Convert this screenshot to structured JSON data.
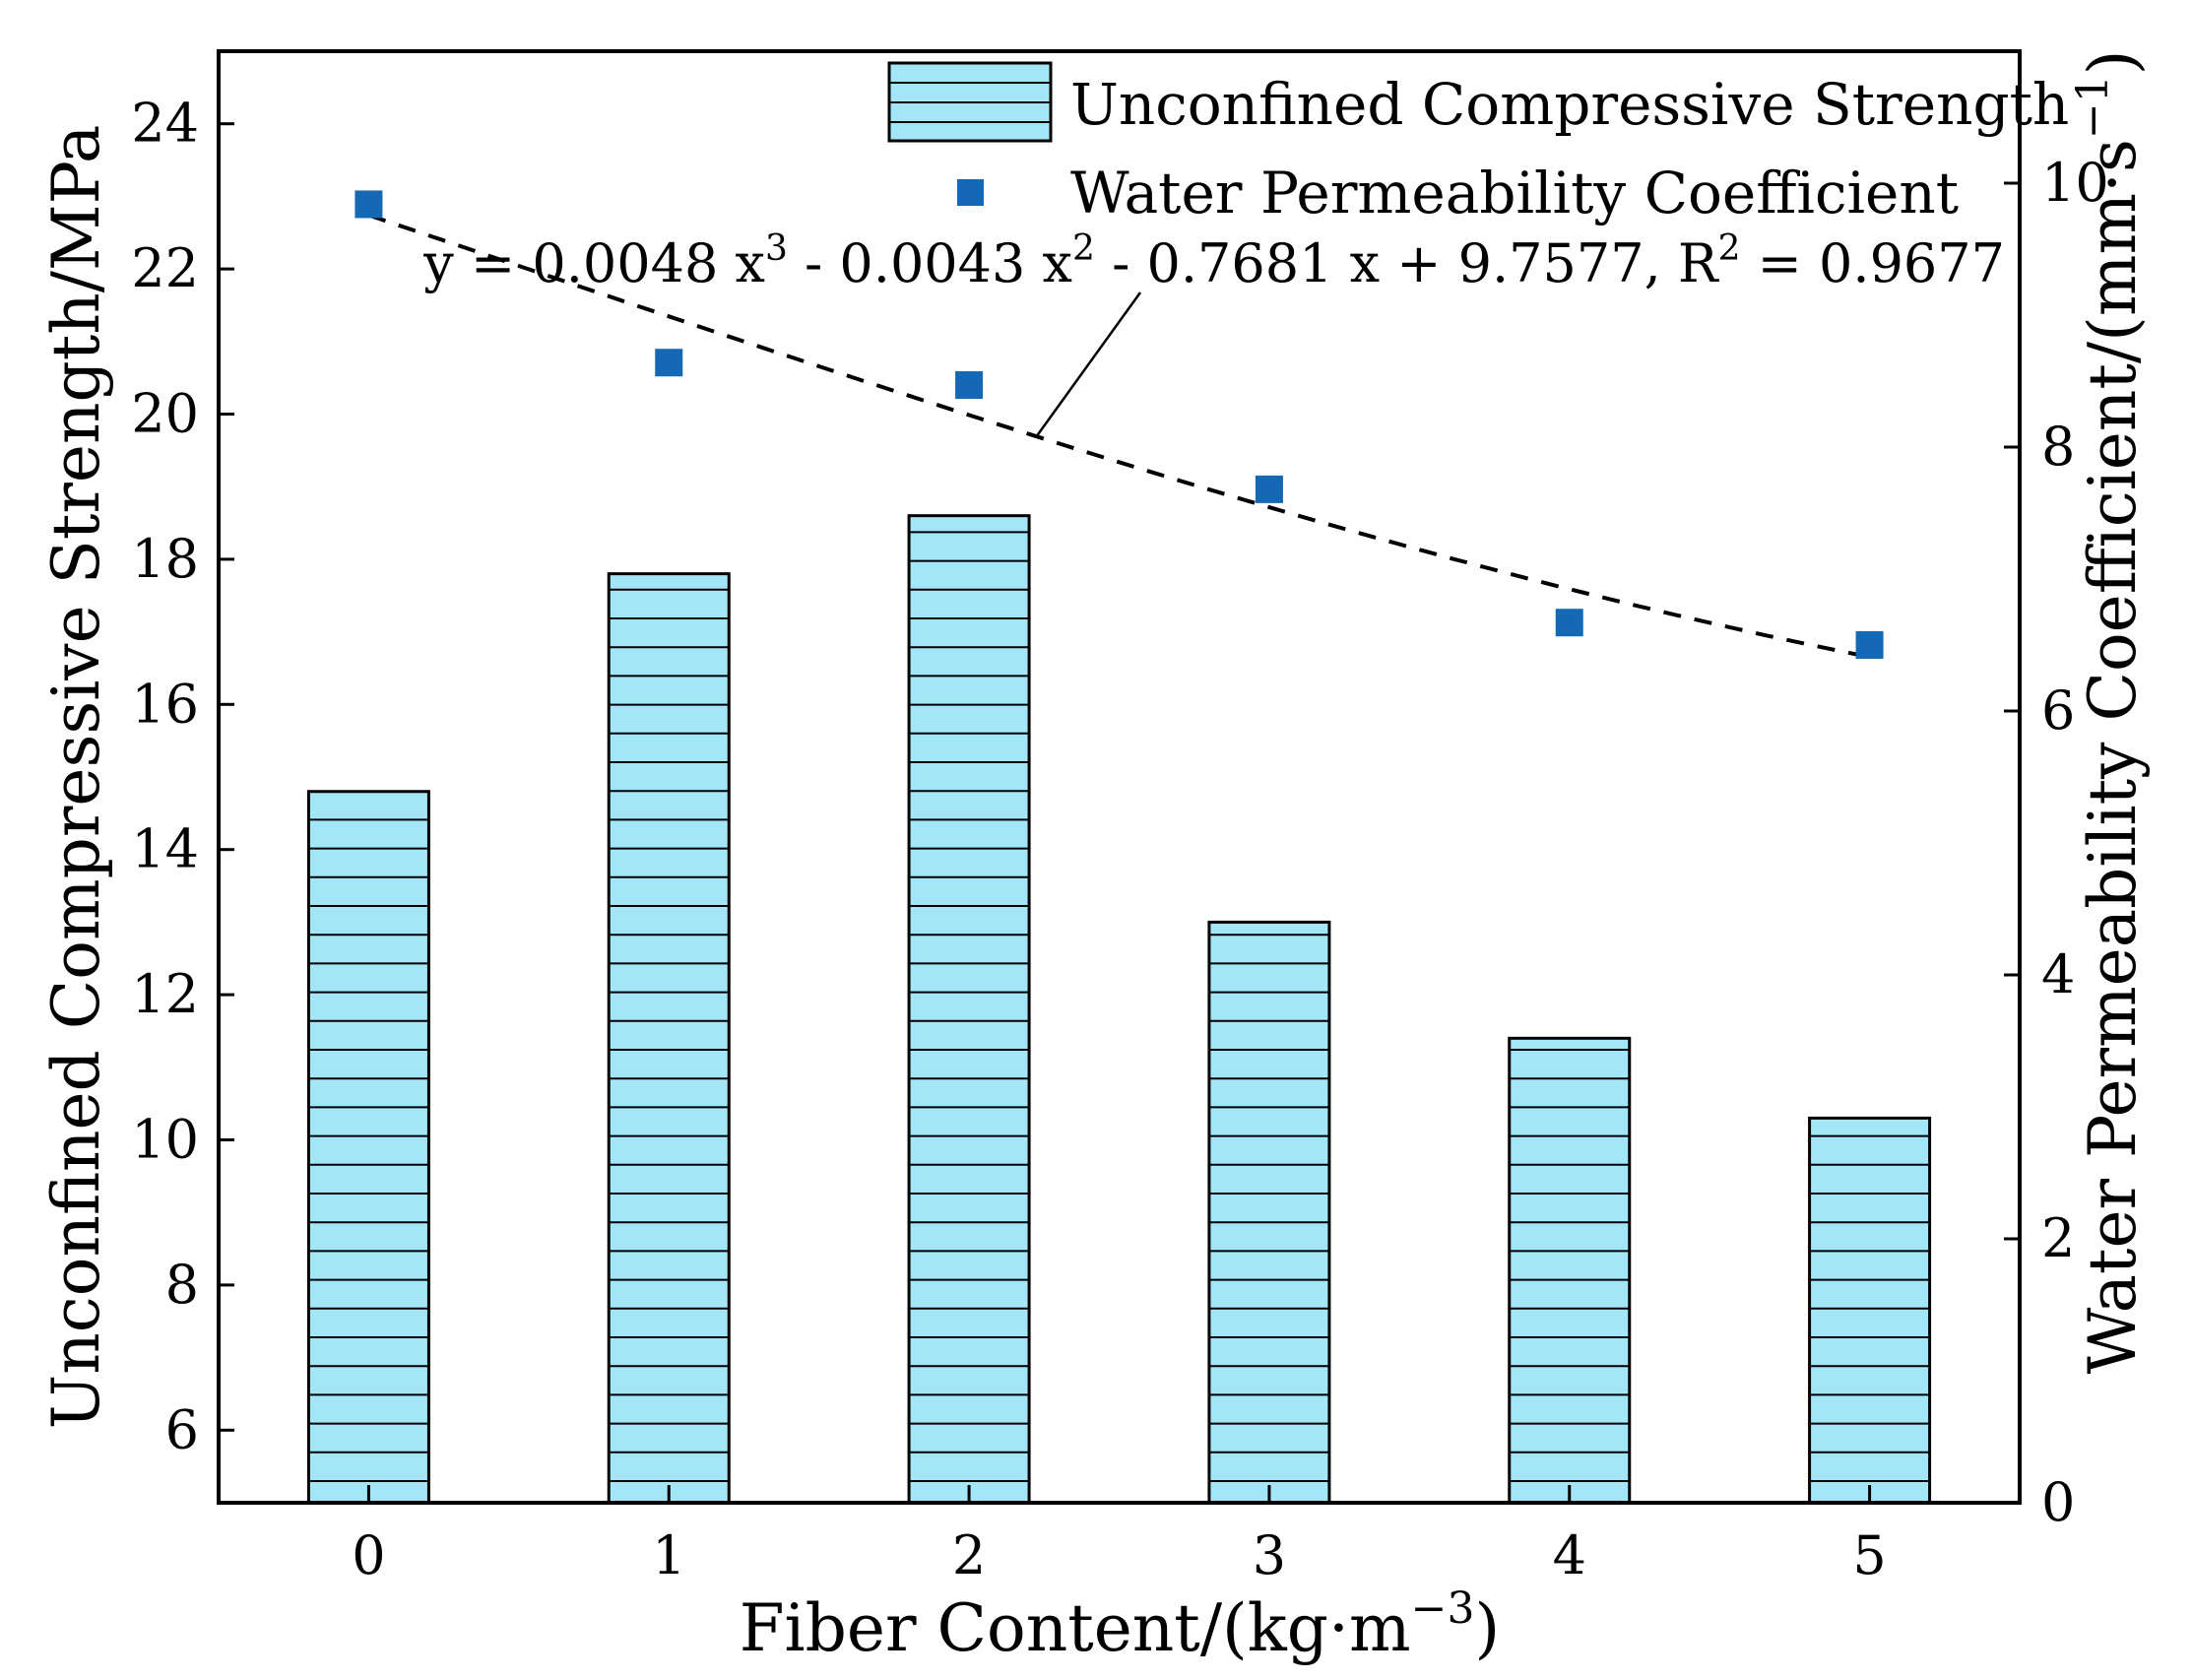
{
  "chart_data": {
    "type": "bar+scatter",
    "categories": [
      "0",
      "1",
      "2",
      "3",
      "4",
      "5"
    ],
    "x": [
      0,
      1,
      2,
      3,
      4,
      5
    ],
    "xlabel": "Fiber Content/(kg·m",
    "xlabel_sup": "−3",
    "xlabel_end": ")",
    "ylabel_left": "Unconfined Compressive Strength/MPa",
    "ylabel_right": "Water Permeability Coefficient/(mm·s",
    "ylabel_right_sup": "−1",
    "ylabel_right_end": ")",
    "ylim_left": [
      5,
      25
    ],
    "ylim_right": [
      0,
      11
    ],
    "yticks_left": [
      6,
      8,
      10,
      12,
      14,
      16,
      18,
      20,
      22,
      24
    ],
    "yticks_right": [
      0,
      2,
      4,
      6,
      8,
      10
    ],
    "xlim": [
      -0.5,
      5.5
    ],
    "series": [
      {
        "name": "Unconfined Compressive Strength",
        "kind": "bar",
        "axis": "left",
        "values": [
          14.8,
          17.8,
          18.6,
          13.0,
          11.4,
          10.3
        ],
        "color": "#a3e6f8",
        "hatch": "horizontal"
      },
      {
        "name": "Water Permeability Coefficient",
        "kind": "scatter",
        "axis": "right",
        "values": [
          9.84,
          8.64,
          8.47,
          7.68,
          6.67,
          6.5
        ],
        "color": "#1568b4"
      }
    ],
    "fit": {
      "kind": "dashed-line",
      "axis": "right",
      "coefficients": [
        9.7577,
        -0.7681,
        -0.0043,
        0.0048
      ],
      "equation": {
        "p1": "y = 0.0048 x",
        "s1": "3",
        "p2": " - 0.0043 x",
        "s2": "2",
        "p3": " - 0.7681 x + 9.7577, R",
        "s3": "2",
        "p4": " = 0.9677"
      }
    },
    "legend_placement": "top-right"
  }
}
